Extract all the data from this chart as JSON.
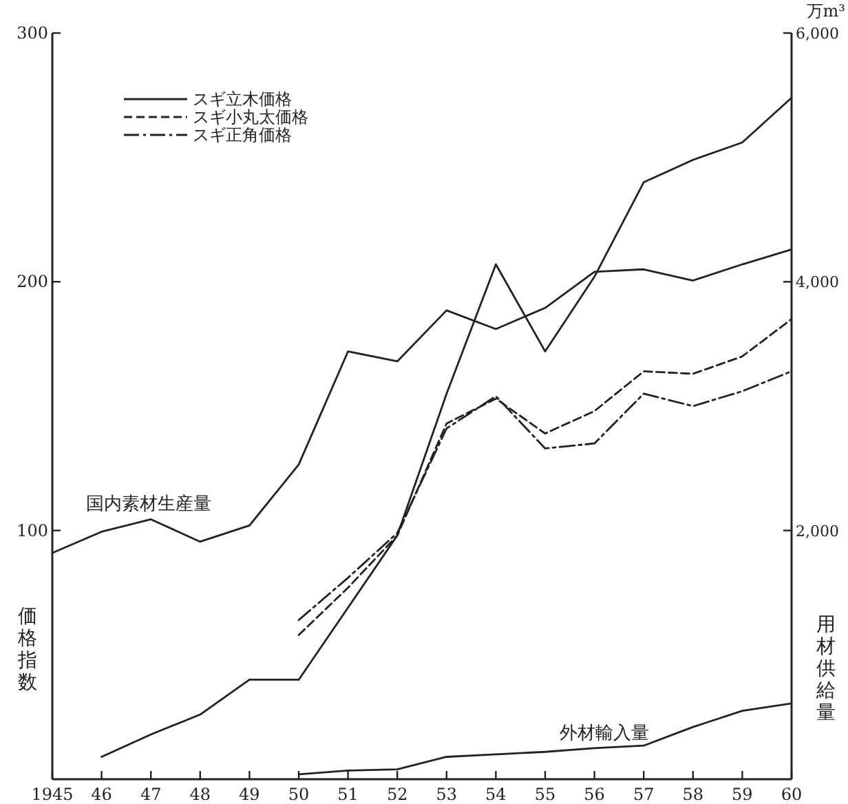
{
  "chart_data": {
    "type": "line",
    "x": [
      1945,
      1946,
      1947,
      1948,
      1949,
      1950,
      1951,
      1952,
      1953,
      1954,
      1955,
      1956,
      1957,
      1958,
      1959,
      1960
    ],
    "xlim": [
      1945,
      1960
    ],
    "xticks": [
      1945,
      {
        "value": 1946,
        "label": "46"
      },
      {
        "value": 1947,
        "label": "47"
      },
      {
        "value": 1948,
        "label": "48"
      },
      {
        "value": 1949,
        "label": "49"
      },
      {
        "value": 1950,
        "label": "50"
      },
      {
        "value": 1951,
        "label": "51"
      },
      {
        "value": 1952,
        "label": "52"
      },
      {
        "value": 1953,
        "label": "53"
      },
      {
        "value": 1954,
        "label": "54"
      },
      {
        "value": 1955,
        "label": "55"
      },
      {
        "value": 1956,
        "label": "56"
      },
      {
        "value": 1957,
        "label": "57"
      },
      {
        "value": 1958,
        "label": "58"
      },
      {
        "value": 1959,
        "label": "59"
      },
      {
        "value": 1960,
        "label": "60"
      }
    ],
    "ylim": [
      0,
      300
    ],
    "yticks": [
      100,
      200,
      300
    ],
    "y2lim": [
      0,
      6000
    ],
    "y2ticks": [
      {
        "value": 2000,
        "label": "2,000"
      },
      {
        "value": 4000,
        "label": "4,000"
      },
      {
        "value": 6000,
        "label": "6,000"
      }
    ],
    "ylabel": "価格指数",
    "y2label": "用材供給量",
    "annotations": [
      "万m³"
    ],
    "legend": "top left",
    "grid": false,
    "marker": "none",
    "series": [
      {
        "name": "スギ立木価格",
        "color": "#222222",
        "line_style": "solid",
        "values": [
          null,
          9,
          18,
          26,
          40,
          40,
          69,
          98,
          155,
          207,
          172,
          202,
          240,
          249,
          256,
          274
        ]
      },
      {
        "name": "スギ小丸太価格",
        "color": "#222222",
        "line_style": "dashed",
        "values": [
          null,
          null,
          null,
          null,
          null,
          58,
          77,
          98,
          143,
          153,
          139,
          148,
          164,
          163,
          170,
          185
        ]
      },
      {
        "name": "スギ正角価格",
        "color": "#222222",
        "line_style": "dashdot",
        "values": [
          null,
          null,
          null,
          null,
          null,
          64,
          81,
          99,
          141,
          154,
          133,
          135,
          155,
          150,
          156,
          164
        ]
      },
      {
        "name": "国内素材生産量",
        "color": "#222222",
        "line_style": "solid",
        "axis": "y2",
        "values": [
          1820,
          1990,
          2090,
          1910,
          2040,
          2530,
          3440,
          3360,
          3770,
          3620,
          3790,
          4080,
          4100,
          4010,
          4140,
          4260
        ]
      },
      {
        "name": "外材輸入量",
        "color": "#222222",
        "line_style": "solid",
        "axis": "y2",
        "values": [
          null,
          null,
          null,
          null,
          null,
          40,
          70,
          80,
          180,
          200,
          220,
          250,
          270,
          420,
          550,
          610
        ]
      }
    ]
  }
}
